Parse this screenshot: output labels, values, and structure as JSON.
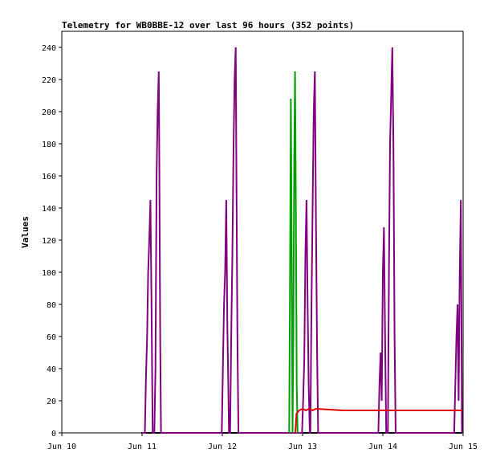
{
  "chart_data": {
    "type": "line",
    "title": "Telemetry for WB0BBE-12 over last 96 hours (352 points)",
    "xlabel": "",
    "ylabel": "Values",
    "xlim": [
      "2024-06-10T00:00",
      "2024-06-15T00:00"
    ],
    "ylim": [
      0,
      250
    ],
    "yticks": [
      0,
      20,
      40,
      60,
      80,
      100,
      120,
      140,
      160,
      180,
      200,
      220,
      240
    ],
    "xticks": [
      {
        "t": "2024-06-10T00:00",
        "label": "Jun 10"
      },
      {
        "t": "2024-06-11T00:00",
        "label": "Jun 11"
      },
      {
        "t": "2024-06-12T00:00",
        "label": "Jun 12"
      },
      {
        "t": "2024-06-13T00:00",
        "label": "Jun 13"
      },
      {
        "t": "2024-06-14T00:00",
        "label": "Jun 14"
      },
      {
        "t": "2024-06-15T00:00",
        "label": "Jun 15"
      }
    ],
    "grid": false,
    "legend": "none",
    "series": [
      {
        "color": "#000000",
        "points": [
          [
            "2024-06-10T23:45",
            0
          ],
          [
            "2024-06-14T23:45",
            0
          ]
        ]
      },
      {
        "color": "#800080",
        "points": [
          [
            "2024-06-11T00:00",
            0
          ],
          [
            "2024-06-11T00:50",
            0
          ],
          [
            "2024-06-11T01:10",
            35
          ],
          [
            "2024-06-11T01:30",
            60
          ],
          [
            "2024-06-11T01:50",
            100
          ],
          [
            "2024-06-11T02:10",
            120
          ],
          [
            "2024-06-11T02:30",
            145
          ],
          [
            "2024-06-11T02:50",
            80
          ],
          [
            "2024-06-11T03:10",
            0
          ],
          [
            "2024-06-11T03:40",
            0
          ],
          [
            "2024-06-11T04:00",
            40
          ],
          [
            "2024-06-11T04:20",
            160
          ],
          [
            "2024-06-11T04:40",
            200
          ],
          [
            "2024-06-11T05:00",
            225
          ],
          [
            "2024-06-11T05:10",
            170
          ],
          [
            "2024-06-11T05:25",
            60
          ],
          [
            "2024-06-11T05:40",
            0
          ],
          [
            "2024-06-11T23:50",
            0
          ],
          [
            "2024-06-12T00:10",
            40
          ],
          [
            "2024-06-12T00:30",
            80
          ],
          [
            "2024-06-12T00:50",
            100
          ],
          [
            "2024-06-12T01:10",
            145
          ],
          [
            "2024-06-12T01:30",
            65
          ],
          [
            "2024-06-12T01:45",
            35
          ],
          [
            "2024-06-12T02:00",
            0
          ],
          [
            "2024-06-12T02:20",
            0
          ],
          [
            "2024-06-12T02:40",
            60
          ],
          [
            "2024-06-12T03:00",
            110
          ],
          [
            "2024-06-12T03:20",
            175
          ],
          [
            "2024-06-12T03:40",
            220
          ],
          [
            "2024-06-12T04:00",
            240
          ],
          [
            "2024-06-12T04:15",
            150
          ],
          [
            "2024-06-12T04:30",
            60
          ],
          [
            "2024-06-12T04:50",
            0
          ],
          [
            "2024-06-12T23:50",
            0
          ],
          [
            "2024-06-13T00:10",
            20
          ],
          [
            "2024-06-13T00:30",
            45
          ],
          [
            "2024-06-13T00:50",
            110
          ],
          [
            "2024-06-13T01:10",
            145
          ],
          [
            "2024-06-13T01:30",
            80
          ],
          [
            "2024-06-13T01:50",
            30
          ],
          [
            "2024-06-13T02:10",
            0
          ],
          [
            "2024-06-13T02:20",
            0
          ],
          [
            "2024-06-13T02:40",
            80
          ],
          [
            "2024-06-13T03:00",
            140
          ],
          [
            "2024-06-13T03:20",
            200
          ],
          [
            "2024-06-13T03:40",
            225
          ],
          [
            "2024-06-13T04:00",
            130
          ],
          [
            "2024-06-13T04:20",
            50
          ],
          [
            "2024-06-13T04:40",
            0
          ],
          [
            "2024-06-13T22:40",
            0
          ],
          [
            "2024-06-13T23:00",
            30
          ],
          [
            "2024-06-13T23:20",
            50
          ],
          [
            "2024-06-13T23:40",
            20
          ],
          [
            "2024-06-14T00:00",
            100
          ],
          [
            "2024-06-14T00:20",
            128
          ],
          [
            "2024-06-14T00:40",
            60
          ],
          [
            "2024-06-14T01:00",
            0
          ],
          [
            "2024-06-14T01:30",
            0
          ],
          [
            "2024-06-14T01:50",
            100
          ],
          [
            "2024-06-14T02:10",
            180
          ],
          [
            "2024-06-14T02:30",
            210
          ],
          [
            "2024-06-14T02:50",
            240
          ],
          [
            "2024-06-14T03:10",
            180
          ],
          [
            "2024-06-14T03:30",
            60
          ],
          [
            "2024-06-14T03:50",
            0
          ],
          [
            "2024-06-14T21:20",
            0
          ],
          [
            "2024-06-14T21:40",
            30
          ],
          [
            "2024-06-14T22:00",
            60
          ],
          [
            "2024-06-14T22:20",
            80
          ],
          [
            "2024-06-14T22:40",
            20
          ],
          [
            "2024-06-14T23:00",
            100
          ],
          [
            "2024-06-14T23:20",
            145
          ],
          [
            "2024-06-14T23:40",
            0
          ]
        ]
      },
      {
        "color": "#00a000",
        "points": [
          [
            "2024-06-12T20:00",
            0
          ],
          [
            "2024-06-12T20:15",
            100
          ],
          [
            "2024-06-12T20:30",
            208
          ],
          [
            "2024-06-12T20:45",
            105
          ],
          [
            "2024-06-12T21:00",
            0
          ],
          [
            "2024-06-12T21:15",
            60
          ],
          [
            "2024-06-12T21:30",
            170
          ],
          [
            "2024-06-12T21:45",
            225
          ],
          [
            "2024-06-12T22:00",
            135
          ],
          [
            "2024-06-12T22:15",
            30
          ],
          [
            "2024-06-12T22:30",
            0
          ]
        ]
      },
      {
        "color": "#e00000",
        "points": [
          [
            "2024-06-12T21:50",
            0
          ],
          [
            "2024-06-12T22:10",
            12
          ],
          [
            "2024-06-12T23:00",
            14
          ],
          [
            "2024-06-13T00:00",
            15
          ],
          [
            "2024-06-13T01:00",
            14
          ],
          [
            "2024-06-13T02:00",
            15
          ],
          [
            "2024-06-13T03:00",
            14
          ],
          [
            "2024-06-13T04:00",
            15
          ],
          [
            "2024-06-13T12:00",
            14
          ],
          [
            "2024-06-14T00:00",
            14
          ],
          [
            "2024-06-14T12:00",
            14
          ],
          [
            "2024-06-14T23:45",
            14
          ]
        ]
      }
    ]
  }
}
